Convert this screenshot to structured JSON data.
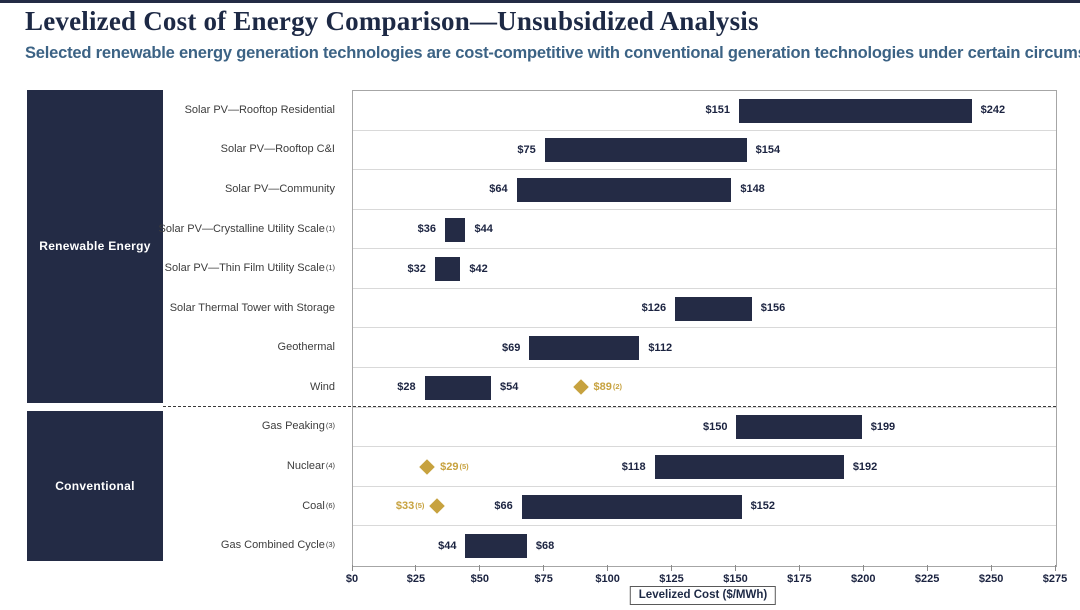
{
  "header": {
    "title": "Levelized Cost of Energy Comparison—Unsubsidized Analysis",
    "subtitle": "Selected renewable energy generation technologies are cost-competitive with conventional generation technologies under certain circumstances"
  },
  "chart_data": {
    "type": "bar",
    "subtype": "horizontal-range-bars",
    "xlabel": "Levelized Cost ($/MWh)",
    "xlim": [
      0,
      275
    ],
    "x_tick_interval": 25,
    "x_ticks": [
      "$0",
      "$25",
      "$50",
      "$75",
      "$100",
      "$125",
      "$150",
      "$175",
      "$200",
      "$225",
      "$250",
      "$275"
    ],
    "grid": "row-separators",
    "groups": [
      {
        "label": "Renewable Energy",
        "rows": [
          {
            "label": "Solar PV—Rooftop Residential",
            "sup": "",
            "low": 151,
            "high": 242,
            "low_label": "$151",
            "high_label": "$242"
          },
          {
            "label": "Solar PV—Rooftop C&I",
            "sup": "",
            "low": 75,
            "high": 154,
            "low_label": "$75",
            "high_label": "$154"
          },
          {
            "label": "Solar PV—Community",
            "sup": "",
            "low": 64,
            "high": 148,
            "low_label": "$64",
            "high_label": "$148"
          },
          {
            "label": "Solar PV—Crystalline Utility Scale",
            "sup": "(1)",
            "low": 36,
            "high": 44,
            "low_label": "$36",
            "high_label": "$44"
          },
          {
            "label": "Solar PV—Thin Film Utility Scale",
            "sup": "(1)",
            "low": 32,
            "high": 42,
            "low_label": "$32",
            "high_label": "$42"
          },
          {
            "label": "Solar Thermal Tower with Storage",
            "sup": "",
            "low": 126,
            "high": 156,
            "low_label": "$126",
            "high_label": "$156"
          },
          {
            "label": "Geothermal",
            "sup": "",
            "low": 69,
            "high": 112,
            "low_label": "$69",
            "high_label": "$112"
          },
          {
            "label": "Wind",
            "sup": "",
            "low": 28,
            "high": 54,
            "low_label": "$28",
            "high_label": "$54",
            "diamond": {
              "value": 89,
              "label": "$89",
              "sup": "(2)",
              "label_side": "right"
            }
          }
        ]
      },
      {
        "label": "Conventional",
        "rows": [
          {
            "label": "Gas Peaking",
            "sup": "(3)",
            "low": 150,
            "high": 199,
            "low_label": "$150",
            "high_label": "$199"
          },
          {
            "label": "Nuclear",
            "sup": "(4)",
            "low": 118,
            "high": 192,
            "low_label": "$118",
            "high_label": "$192",
            "diamond": {
              "value": 29,
              "label": "$29",
              "sup": "(5)",
              "label_side": "right"
            }
          },
          {
            "label": "Coal",
            "sup": "(6)",
            "low": 66,
            "high": 152,
            "low_label": "$66",
            "high_label": "$152",
            "diamond": {
              "value": 33,
              "label": "$33",
              "sup": "(5)",
              "label_side": "left"
            }
          },
          {
            "label": "Gas Combined Cycle",
            "sup": "(3)",
            "low": 44,
            "high": 68,
            "low_label": "$44",
            "high_label": "$68"
          }
        ]
      }
    ]
  },
  "colors": {
    "bar": "#242b45",
    "category_box": "#232b45",
    "diamond": "#c7a23f",
    "title": "#1d2945",
    "subtitle": "#3c6385",
    "row_separator": "#d9d9d9",
    "plot_border": "#a6a6a6",
    "dashed_separator": "#3a3a3a"
  }
}
